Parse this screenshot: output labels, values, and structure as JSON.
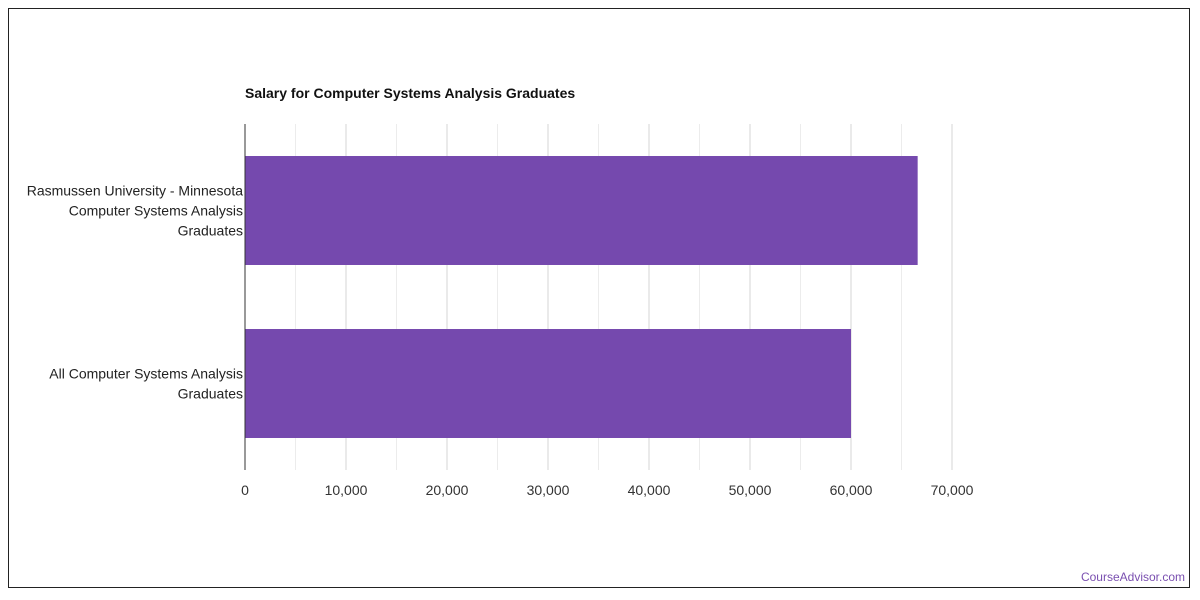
{
  "chart_data": {
    "type": "bar",
    "orientation": "horizontal",
    "title": "Salary for Computer Systems Analysis Graduates",
    "categories": [
      [
        "Rasmussen University - Minnesota",
        "Computer Systems Analysis",
        "Graduates"
      ],
      [
        "All Computer Systems Analysis",
        "Graduates"
      ]
    ],
    "values": [
      66600,
      60000
    ],
    "xlim": [
      0,
      70000
    ],
    "x_ticks": [
      "0",
      "10,000",
      "20,000",
      "30,000",
      "40,000",
      "50,000",
      "60,000",
      "70,000"
    ],
    "grid": true,
    "bar_color": "#7549ae"
  },
  "watermark": "CourseAdvisor.com"
}
